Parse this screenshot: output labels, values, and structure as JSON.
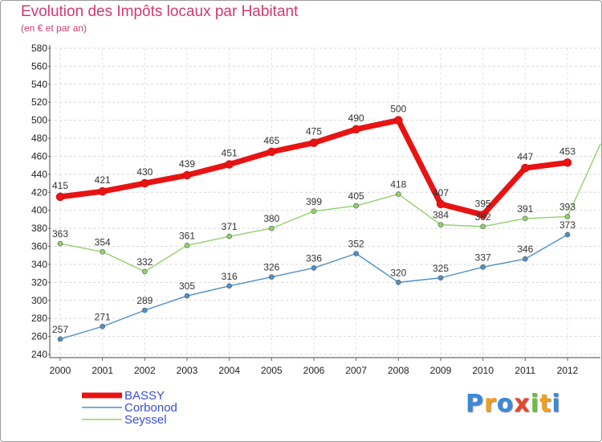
{
  "title": "Evolution des Impôts locaux par Habitant",
  "subtitle": "(en € et par an)",
  "logo": {
    "letters": [
      "P",
      "r",
      "o",
      "x",
      "i",
      "t",
      "i"
    ],
    "colors": [
      "#3a8ad8",
      "#f0a020",
      "#3a8ad8",
      "#e8452c",
      "#6cbf3a",
      "#f0a020",
      "#3a8ad8"
    ]
  },
  "chart_data": {
    "type": "line",
    "x": [
      "2000",
      "2001",
      "2002",
      "2003",
      "2004",
      "2005",
      "2006",
      "2007",
      "2008",
      "2009",
      "2010",
      "2011",
      "2012"
    ],
    "ylim": [
      240,
      580
    ],
    "yticks": [
      240,
      260,
      280,
      300,
      320,
      340,
      360,
      380,
      400,
      420,
      440,
      460,
      480,
      500,
      520,
      540,
      560,
      580
    ],
    "grid": true,
    "legend_position": "bottom-left",
    "series": [
      {
        "name": "BASSY",
        "color": "#e81313",
        "values": [
          415,
          421,
          430,
          439,
          451,
          465,
          475,
          490,
          500,
          407,
          395,
          447,
          453
        ]
      },
      {
        "name": "Corbonod",
        "color": "#4f8fc8",
        "values": [
          257,
          271,
          289,
          305,
          316,
          326,
          336,
          352,
          320,
          325,
          337,
          346,
          373
        ]
      },
      {
        "name": "Seyssel",
        "color": "#92d26a",
        "values": [
          363,
          354,
          332,
          361,
          371,
          380,
          399,
          405,
          418,
          384,
          382,
          391,
          393
        ]
      }
    ]
  }
}
